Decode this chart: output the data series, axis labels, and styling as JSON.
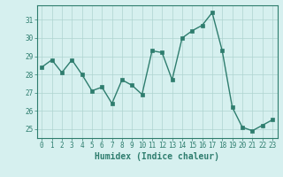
{
  "x": [
    0,
    1,
    2,
    3,
    4,
    5,
    6,
    7,
    8,
    9,
    10,
    11,
    12,
    13,
    14,
    15,
    16,
    17,
    18,
    19,
    20,
    21,
    22,
    23
  ],
  "y": [
    28.4,
    28.8,
    28.1,
    28.8,
    28.0,
    27.1,
    27.3,
    26.4,
    27.7,
    27.4,
    26.9,
    29.3,
    29.2,
    27.7,
    30.0,
    30.4,
    30.7,
    31.4,
    29.3,
    26.2,
    25.1,
    24.9,
    25.2,
    25.5
  ],
  "xlabel": "Humidex (Indice chaleur)",
  "ylim": [
    24.5,
    31.8
  ],
  "xlim": [
    -0.5,
    23.5
  ],
  "yticks": [
    25,
    26,
    27,
    28,
    29,
    30,
    31
  ],
  "xticks": [
    0,
    1,
    2,
    3,
    4,
    5,
    6,
    7,
    8,
    9,
    10,
    11,
    12,
    13,
    14,
    15,
    16,
    17,
    18,
    19,
    20,
    21,
    22,
    23
  ],
  "line_color": "#2e7d6e",
  "marker_color": "#2e7d6e",
  "bg_color": "#d6f0ef",
  "grid_color": "#aed4d0",
  "axis_color": "#2e7d6e",
  "label_color": "#2e7d6e",
  "font_family": "monospace",
  "tick_fontsize": 5.5,
  "xlabel_fontsize": 7.0,
  "linewidth": 1.0,
  "markersize": 2.2
}
